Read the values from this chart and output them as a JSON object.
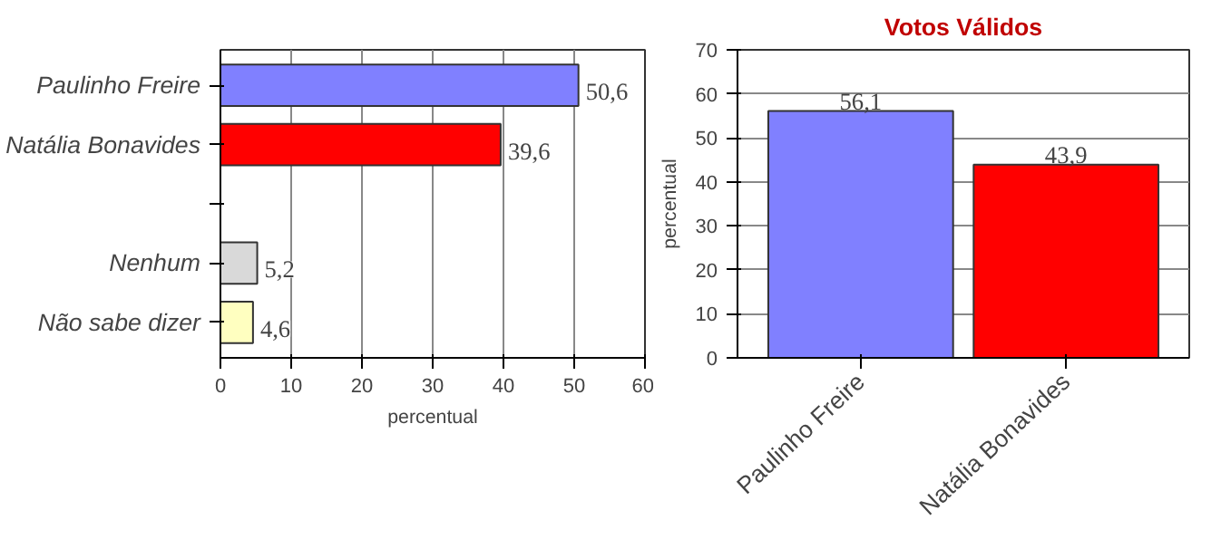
{
  "chart_data": [
    {
      "type": "bar",
      "orientation": "horizontal",
      "categories": [
        "Paulinho Freire",
        "Natália Bonavides",
        null,
        "Nenhum",
        "Não sabe dizer"
      ],
      "values": [
        50.6,
        39.6,
        null,
        5.2,
        4.6
      ],
      "colors": [
        "#8080ff",
        "#ff0000",
        "#d9d9d9",
        "#d9d9d9",
        "#ffffc0"
      ],
      "value_labels": [
        "50,6",
        "39,6",
        null,
        "5,2",
        "4,6"
      ],
      "xlabel": "percentual",
      "xlim": [
        0,
        60
      ],
      "xticks": [
        0,
        10,
        20,
        30,
        40,
        50,
        60
      ],
      "grid": "x"
    },
    {
      "type": "bar",
      "title": "Votos Válidos",
      "ylabel": "percentual",
      "categories": [
        "Paulinho Freire",
        "Natália Bonavides"
      ],
      "values": [
        56.1,
        43.9
      ],
      "colors": [
        "#8080ff",
        "#ff0000"
      ],
      "value_labels": [
        "56,1",
        "43,9"
      ],
      "ylim": [
        0,
        70
      ],
      "yticks": [
        0,
        10,
        20,
        30,
        40,
        50,
        60,
        70
      ],
      "grid": "y"
    }
  ]
}
